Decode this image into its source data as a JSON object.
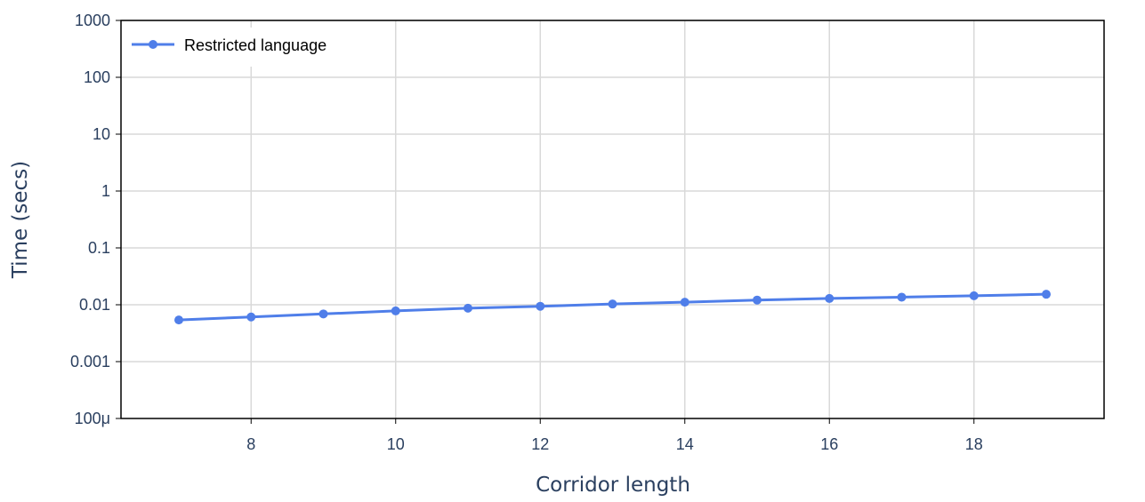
{
  "colors": {
    "series": "#4f7ee9",
    "grid": "#d9d9d9",
    "axis": "#000000",
    "text": "#2a3f5f",
    "background": "#ffffff"
  },
  "chart_data": {
    "type": "line",
    "title": "",
    "xlabel": "Corridor length",
    "ylabel": "Time (secs)",
    "xlim": [
      6.2,
      19.8
    ],
    "ylim": [
      0.0001,
      1000
    ],
    "yscale": "log",
    "grid": true,
    "legend": "top-left",
    "x_ticks": [
      {
        "value": 8,
        "label": "8"
      },
      {
        "value": 10,
        "label": "10"
      },
      {
        "value": 12,
        "label": "12"
      },
      {
        "value": 14,
        "label": "14"
      },
      {
        "value": 16,
        "label": "16"
      },
      {
        "value": 18,
        "label": "18"
      }
    ],
    "y_ticks": [
      {
        "value": 0.0001,
        "label": "100μ"
      },
      {
        "value": 0.001,
        "label": "0.001"
      },
      {
        "value": 0.01,
        "label": "0.01"
      },
      {
        "value": 0.1,
        "label": "0.1"
      },
      {
        "value": 1,
        "label": "1"
      },
      {
        "value": 10,
        "label": "10"
      },
      {
        "value": 100,
        "label": "100"
      },
      {
        "value": 1000,
        "label": "1000"
      }
    ],
    "x": [
      7,
      8,
      9,
      10,
      11,
      12,
      13,
      14,
      15,
      16,
      17,
      18,
      19
    ],
    "series": [
      {
        "name": "Restricted language",
        "values": [
          0.0054,
          0.0061,
          0.0069,
          0.0078,
          0.0087,
          0.0094,
          0.0103,
          0.0111,
          0.0121,
          0.0129,
          0.0136,
          0.0144,
          0.0153
        ]
      }
    ]
  }
}
